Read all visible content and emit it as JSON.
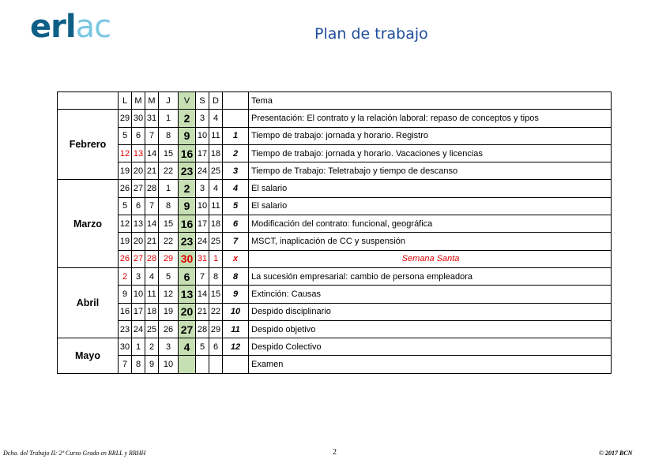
{
  "header": {
    "logo": "erlac",
    "title": "Plan de trabajo"
  },
  "table": {
    "headers": [
      "L",
      "M",
      "M",
      "J",
      "V",
      "S",
      "D",
      "",
      "Tema"
    ],
    "months": [
      {
        "name": "Febrero",
        "rows": [
          {
            "days": [
              "29",
              "30",
              "31",
              "1",
              "2",
              "3",
              "4"
            ],
            "num": "",
            "tema": "Presentación: El contrato y la relación laboral: repaso de conceptos y tipos",
            "red": []
          },
          {
            "days": [
              "5",
              "6",
              "7",
              "8",
              "9",
              "10",
              "11"
            ],
            "num": "1",
            "tema": "Tiempo de trabajo: jornada y horario. Registro",
            "red": []
          },
          {
            "days": [
              "12",
              "13",
              "14",
              "15",
              "16",
              "17",
              "18"
            ],
            "num": "2",
            "tema": "Tiempo de trabajo: jornada y horario. Vacaciones y licencias",
            "red": [
              0,
              1
            ]
          },
          {
            "days": [
              "19",
              "20",
              "21",
              "22",
              "23",
              "24",
              "25"
            ],
            "num": "3",
            "tema": "Tiempo de Trabajo: Teletrabajo y tiempo de descanso",
            "red": []
          }
        ]
      },
      {
        "name": "Marzo",
        "rows": [
          {
            "days": [
              "26",
              "27",
              "28",
              "1",
              "2",
              "3",
              "4"
            ],
            "num": "4",
            "tema": "El salario",
            "red": []
          },
          {
            "days": [
              "5",
              "6",
              "7",
              "8",
              "9",
              "10",
              "11"
            ],
            "num": "5",
            "tema": "El salario",
            "red": []
          },
          {
            "days": [
              "12",
              "13",
              "14",
              "15",
              "16",
              "17",
              "18"
            ],
            "num": "6",
            "tema": "Modificación del contrato: funcional, geográfica",
            "red": []
          },
          {
            "days": [
              "19",
              "20",
              "21",
              "22",
              "23",
              "24",
              "25"
            ],
            "num": "7",
            "tema": "MSCT, inaplicación de CC y suspensión",
            "red": []
          },
          {
            "days": [
              "26",
              "27",
              "28",
              "29",
              "30",
              "31",
              "1"
            ],
            "num": "x",
            "tema": "Semana Santa",
            "red": [
              0,
              1,
              2,
              3,
              4,
              5,
              6,
              7
            ],
            "holiday": true
          }
        ]
      },
      {
        "name": "Abril",
        "rows": [
          {
            "days": [
              "2",
              "3",
              "4",
              "5",
              "6",
              "7",
              "8"
            ],
            "num": "8",
            "tema": "La sucesión empresarial: cambio de persona empleadora",
            "red": [
              0
            ]
          },
          {
            "days": [
              "9",
              "10",
              "11",
              "12",
              "13",
              "14",
              "15"
            ],
            "num": "9",
            "tema": "Extinción: Causas",
            "red": []
          },
          {
            "days": [
              "16",
              "17",
              "18",
              "19",
              "20",
              "21",
              "22"
            ],
            "num": "10",
            "tema": "Despido disciplinario",
            "red": []
          },
          {
            "days": [
              "23",
              "24",
              "25",
              "26",
              "27",
              "28",
              "29"
            ],
            "num": "11",
            "tema": "Despido objetivo",
            "red": []
          }
        ]
      },
      {
        "name": "Mayo",
        "rows": [
          {
            "days": [
              "30",
              "1",
              "2",
              "3",
              "4",
              "5",
              "6"
            ],
            "num": "12",
            "tema": "Despido Colectivo",
            "red": []
          },
          {
            "days": [
              "7",
              "8",
              "9",
              "10",
              "",
              "",
              ""
            ],
            "num": "",
            "tema": "Examen",
            "red": []
          }
        ]
      }
    ]
  },
  "footer": {
    "left": "Dcho. del Trabajo II: 2º Curso Grado en RRLL y RRHH",
    "page": "2",
    "right": "© 2017 BCN"
  },
  "colors": {
    "accent": "#1f4e9a",
    "highlight": "#c6e0b4",
    "red": "#e00000"
  }
}
